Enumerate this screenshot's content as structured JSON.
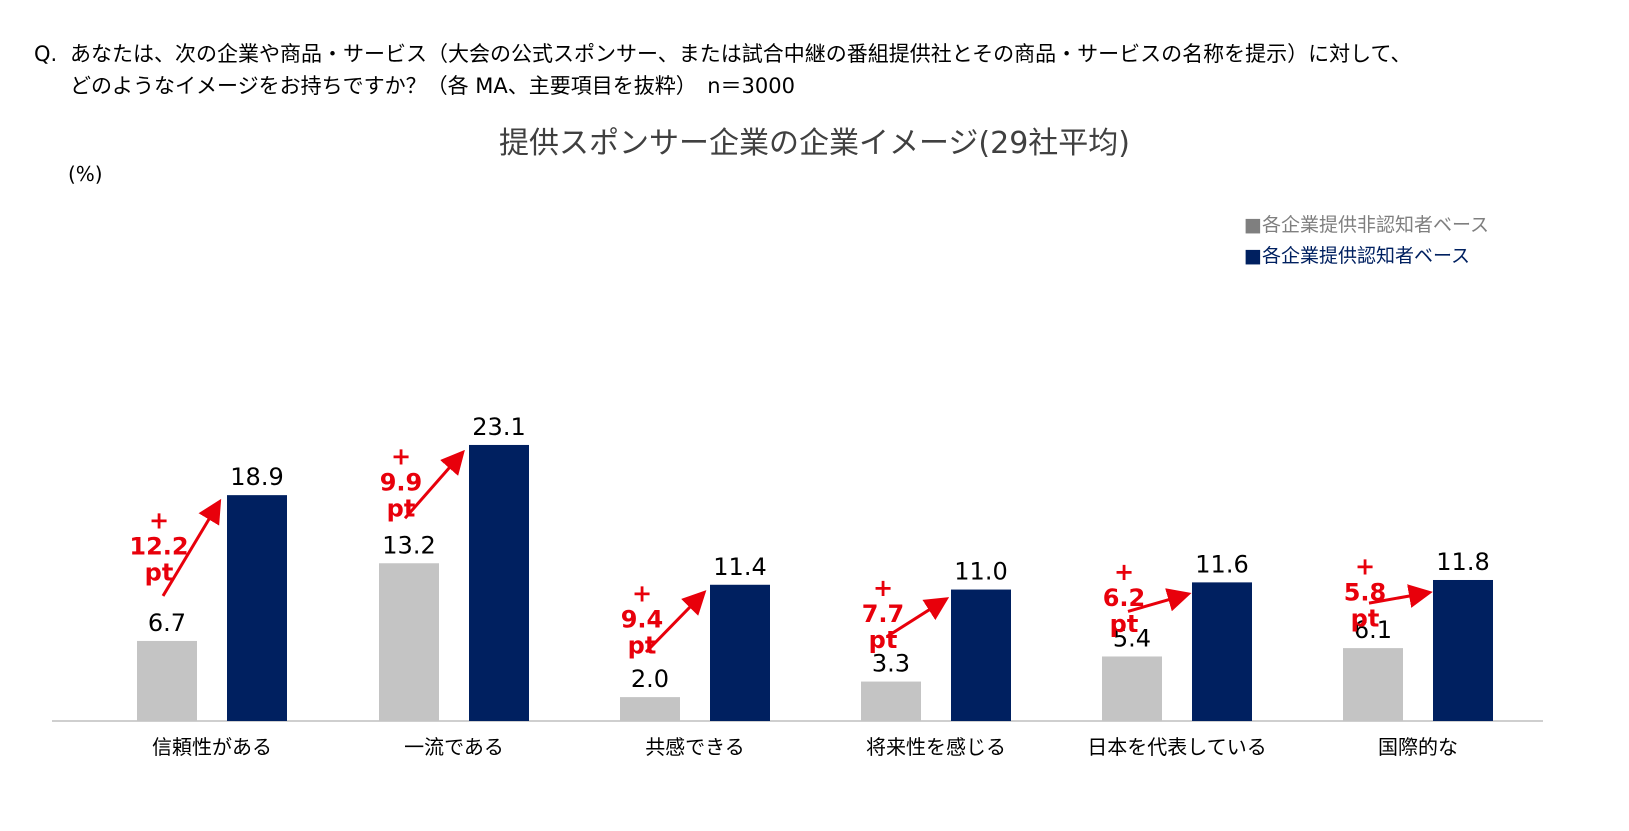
{
  "question": {
    "marker": "Q.",
    "line1": "あなたは、次の企業や商品・サービス（大会の公式スポンサー、または試合中継の番組提供社とその商品・サービスの名称を提示）に対して、",
    "line2": "どのようなイメージをお持ちですか？（各 MA、主要項目を抜粋）　n＝3000"
  },
  "chart_data": {
    "type": "bar",
    "title": "提供スポンサー企業の企業イメージ(29社平均)",
    "ylabel": "(%)",
    "ylim": [
      0,
      25
    ],
    "grid": false,
    "legend_position": "top-right",
    "categories": [
      "信頼性がある",
      "一流である",
      "共感できる",
      "将来性を感じる",
      "日本を代表している",
      "国際的な"
    ],
    "series": [
      {
        "name": "■各企業提供非認知者ベース",
        "color": "#c4c4c4",
        "values": [
          6.7,
          13.2,
          2.0,
          3.3,
          5.4,
          6.1
        ]
      },
      {
        "name": "■各企業提供認知者ベース",
        "color": "#002060",
        "values": [
          18.9,
          23.1,
          11.4,
          11.0,
          11.6,
          11.8
        ]
      }
    ],
    "annotations": [
      {
        "plus": "+",
        "value": "12.2",
        "unit": "pt"
      },
      {
        "plus": "+",
        "value": "9.9",
        "unit": "pt"
      },
      {
        "plus": "+",
        "value": "9.4",
        "unit": "pt"
      },
      {
        "plus": "+",
        "value": "7.7",
        "unit": "pt"
      },
      {
        "plus": "+",
        "value": "6.2",
        "unit": "pt"
      },
      {
        "plus": "+",
        "value": "5.8",
        "unit": "pt"
      }
    ],
    "colors": {
      "arrow": "#e8000b",
      "axis": "#bfbfbf",
      "legend_gray_text": "#7f7f7f",
      "legend_navy_text": "#002060"
    }
  }
}
